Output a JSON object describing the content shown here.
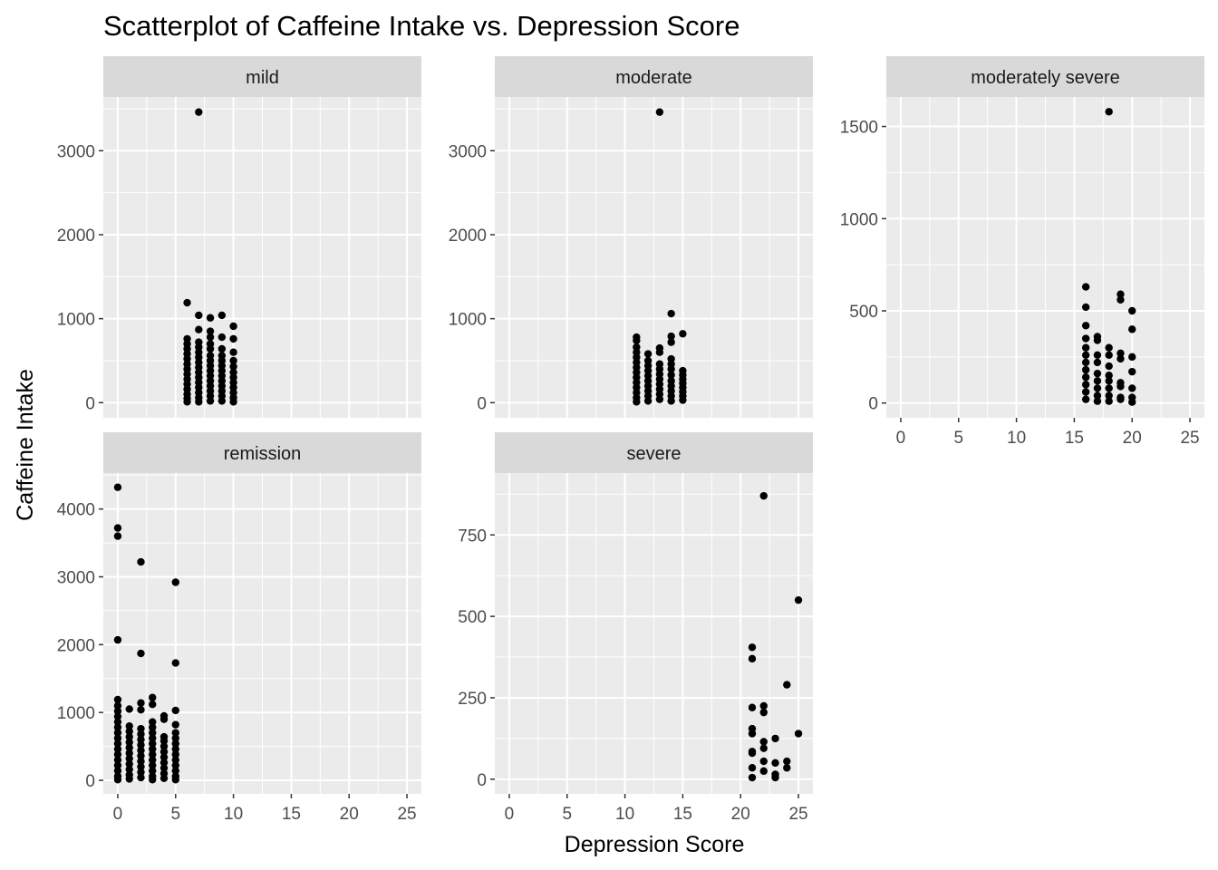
{
  "chart_data": {
    "type": "scatter",
    "title": "Scatterplot of Caffeine Intake vs. Depression Score",
    "xlabel": "Depression Score",
    "ylabel": "Caffeine Intake",
    "xlim": [
      -1.25,
      26.25
    ],
    "x_ticks": [
      0,
      5,
      10,
      15,
      20,
      25
    ],
    "point_color": "#000000",
    "panel_color": "#ebebeb",
    "strip_color": "#d9d9d9",
    "panels": [
      {
        "name": "mild",
        "ylim": [
          -180,
          3640
        ],
        "y_ticks": [
          0,
          1000,
          2000,
          3000
        ],
        "points": [
          [
            7,
            3460
          ],
          [
            6,
            1190
          ],
          [
            7,
            1040
          ],
          [
            8,
            1010
          ],
          [
            9,
            1040
          ],
          [
            10,
            910
          ],
          [
            7,
            870
          ],
          [
            9,
            780
          ],
          [
            8,
            850
          ],
          [
            6,
            760
          ],
          [
            6,
            700
          ],
          [
            6,
            640
          ],
          [
            6,
            580
          ],
          [
            6,
            520
          ],
          [
            6,
            460
          ],
          [
            6,
            400
          ],
          [
            6,
            340
          ],
          [
            6,
            280
          ],
          [
            6,
            220
          ],
          [
            6,
            160
          ],
          [
            6,
            100
          ],
          [
            6,
            50
          ],
          [
            6,
            10
          ],
          [
            7,
            720
          ],
          [
            7,
            660
          ],
          [
            7,
            600
          ],
          [
            7,
            540
          ],
          [
            7,
            480
          ],
          [
            7,
            420
          ],
          [
            7,
            360
          ],
          [
            7,
            300
          ],
          [
            7,
            240
          ],
          [
            7,
            180
          ],
          [
            7,
            120
          ],
          [
            7,
            60
          ],
          [
            7,
            10
          ],
          [
            8,
            780
          ],
          [
            8,
            700
          ],
          [
            8,
            640
          ],
          [
            8,
            560
          ],
          [
            8,
            500
          ],
          [
            8,
            440
          ],
          [
            8,
            380
          ],
          [
            8,
            320
          ],
          [
            8,
            260
          ],
          [
            8,
            200
          ],
          [
            8,
            140
          ],
          [
            8,
            80
          ],
          [
            8,
            20
          ],
          [
            9,
            640
          ],
          [
            9,
            560
          ],
          [
            9,
            500
          ],
          [
            9,
            440
          ],
          [
            9,
            380
          ],
          [
            9,
            320
          ],
          [
            9,
            260
          ],
          [
            9,
            200
          ],
          [
            9,
            140
          ],
          [
            9,
            80
          ],
          [
            9,
            20
          ],
          [
            10,
            760
          ],
          [
            10,
            600
          ],
          [
            10,
            500
          ],
          [
            10,
            430
          ],
          [
            10,
            360
          ],
          [
            10,
            300
          ],
          [
            10,
            240
          ],
          [
            10,
            180
          ],
          [
            10,
            120
          ],
          [
            10,
            60
          ],
          [
            10,
            10
          ]
        ]
      },
      {
        "name": "moderate",
        "ylim": [
          -180,
          3640
        ],
        "y_ticks": [
          0,
          1000,
          2000,
          3000
        ],
        "points": [
          [
            13,
            3460
          ],
          [
            14,
            1060
          ],
          [
            15,
            820
          ],
          [
            14,
            790
          ],
          [
            14,
            720
          ],
          [
            13,
            650
          ],
          [
            13,
            600
          ],
          [
            12,
            580
          ],
          [
            11,
            780
          ],
          [
            11,
            740
          ],
          [
            11,
            660
          ],
          [
            11,
            600
          ],
          [
            11,
            540
          ],
          [
            11,
            480
          ],
          [
            11,
            420
          ],
          [
            11,
            360
          ],
          [
            11,
            300
          ],
          [
            11,
            240
          ],
          [
            11,
            180
          ],
          [
            11,
            120
          ],
          [
            11,
            60
          ],
          [
            11,
            10
          ],
          [
            12,
            500
          ],
          [
            12,
            440
          ],
          [
            12,
            380
          ],
          [
            12,
            320
          ],
          [
            12,
            260
          ],
          [
            12,
            200
          ],
          [
            12,
            140
          ],
          [
            12,
            80
          ],
          [
            12,
            20
          ],
          [
            13,
            460
          ],
          [
            13,
            400
          ],
          [
            13,
            340
          ],
          [
            13,
            280
          ],
          [
            13,
            220
          ],
          [
            13,
            160
          ],
          [
            13,
            100
          ],
          [
            13,
            40
          ],
          [
            14,
            520
          ],
          [
            14,
            460
          ],
          [
            14,
            400
          ],
          [
            14,
            330
          ],
          [
            14,
            260
          ],
          [
            14,
            200
          ],
          [
            14,
            140
          ],
          [
            14,
            80
          ],
          [
            14,
            20
          ],
          [
            15,
            380
          ],
          [
            15,
            330
          ],
          [
            15,
            280
          ],
          [
            15,
            230
          ],
          [
            15,
            180
          ],
          [
            15,
            130
          ],
          [
            15,
            80
          ],
          [
            15,
            30
          ]
        ]
      },
      {
        "name": "moderately severe",
        "ylim": [
          -80,
          1660
        ],
        "y_ticks": [
          0,
          500,
          1000,
          1500
        ],
        "points": [
          [
            18,
            1580
          ],
          [
            16,
            630
          ],
          [
            16,
            520
          ],
          [
            16,
            420
          ],
          [
            16,
            350
          ],
          [
            16,
            300
          ],
          [
            16,
            260
          ],
          [
            16,
            220
          ],
          [
            16,
            180
          ],
          [
            16,
            140
          ],
          [
            16,
            100
          ],
          [
            16,
            60
          ],
          [
            16,
            20
          ],
          [
            17,
            360
          ],
          [
            17,
            340
          ],
          [
            17,
            260
          ],
          [
            17,
            220
          ],
          [
            17,
            160
          ],
          [
            17,
            120
          ],
          [
            17,
            80
          ],
          [
            17,
            40
          ],
          [
            17,
            10
          ],
          [
            18,
            300
          ],
          [
            18,
            260
          ],
          [
            18,
            200
          ],
          [
            18,
            150
          ],
          [
            18,
            120
          ],
          [
            18,
            80
          ],
          [
            18,
            40
          ],
          [
            18,
            10
          ],
          [
            19,
            590
          ],
          [
            19,
            560
          ],
          [
            19,
            270
          ],
          [
            19,
            240
          ],
          [
            19,
            110
          ],
          [
            19,
            90
          ],
          [
            19,
            30
          ],
          [
            19,
            20
          ],
          [
            20,
            500
          ],
          [
            20,
            400
          ],
          [
            20,
            250
          ],
          [
            20,
            170
          ],
          [
            20,
            80
          ],
          [
            20,
            30
          ],
          [
            20,
            5
          ]
        ]
      },
      {
        "name": "remission",
        "ylim": [
          -200,
          4530
        ],
        "y_ticks": [
          0,
          1000,
          2000,
          3000,
          4000
        ],
        "points": [
          [
            0,
            4320
          ],
          [
            0,
            3720
          ],
          [
            0,
            3600
          ],
          [
            0,
            2070
          ],
          [
            2,
            3220
          ],
          [
            2,
            1870
          ],
          [
            5,
            2920
          ],
          [
            5,
            1730
          ],
          [
            0,
            1190
          ],
          [
            0,
            1100
          ],
          [
            0,
            1020
          ],
          [
            0,
            940
          ],
          [
            0,
            860
          ],
          [
            0,
            780
          ],
          [
            0,
            700
          ],
          [
            0,
            620
          ],
          [
            0,
            540
          ],
          [
            0,
            460
          ],
          [
            0,
            380
          ],
          [
            0,
            300
          ],
          [
            0,
            220
          ],
          [
            0,
            140
          ],
          [
            0,
            60
          ],
          [
            0,
            10
          ],
          [
            1,
            1050
          ],
          [
            1,
            800
          ],
          [
            1,
            720
          ],
          [
            1,
            640
          ],
          [
            1,
            560
          ],
          [
            1,
            480
          ],
          [
            1,
            400
          ],
          [
            1,
            320
          ],
          [
            1,
            240
          ],
          [
            1,
            160
          ],
          [
            1,
            80
          ],
          [
            1,
            20
          ],
          [
            2,
            1140
          ],
          [
            2,
            1040
          ],
          [
            2,
            760
          ],
          [
            2,
            680
          ],
          [
            2,
            600
          ],
          [
            2,
            520
          ],
          [
            2,
            440
          ],
          [
            2,
            360
          ],
          [
            2,
            280
          ],
          [
            2,
            200
          ],
          [
            2,
            120
          ],
          [
            2,
            40
          ],
          [
            3,
            1220
          ],
          [
            3,
            1120
          ],
          [
            3,
            860
          ],
          [
            3,
            780
          ],
          [
            3,
            700
          ],
          [
            3,
            620
          ],
          [
            3,
            540
          ],
          [
            3,
            460
          ],
          [
            3,
            380
          ],
          [
            3,
            300
          ],
          [
            3,
            220
          ],
          [
            3,
            140
          ],
          [
            3,
            60
          ],
          [
            3,
            10
          ],
          [
            4,
            950
          ],
          [
            4,
            900
          ],
          [
            4,
            640
          ],
          [
            4,
            580
          ],
          [
            4,
            500
          ],
          [
            4,
            420
          ],
          [
            4,
            340
          ],
          [
            4,
            260
          ],
          [
            4,
            180
          ],
          [
            4,
            100
          ],
          [
            4,
            30
          ],
          [
            5,
            1030
          ],
          [
            5,
            820
          ],
          [
            5,
            700
          ],
          [
            5,
            620
          ],
          [
            5,
            540
          ],
          [
            5,
            460
          ],
          [
            5,
            380
          ],
          [
            5,
            300
          ],
          [
            5,
            220
          ],
          [
            5,
            140
          ],
          [
            5,
            60
          ],
          [
            5,
            10
          ]
        ]
      },
      {
        "name": "severe",
        "ylim": [
          -45,
          940
        ],
        "y_ticks": [
          0,
          250,
          500,
          750
        ],
        "points": [
          [
            22,
            870
          ],
          [
            25,
            550
          ],
          [
            21,
            405
          ],
          [
            21,
            370
          ],
          [
            24,
            290
          ],
          [
            21,
            220
          ],
          [
            22,
            225
          ],
          [
            22,
            205
          ],
          [
            21,
            155
          ],
          [
            21,
            140
          ],
          [
            25,
            140
          ],
          [
            23,
            125
          ],
          [
            22,
            115
          ],
          [
            22,
            95
          ],
          [
            21,
            85
          ],
          [
            21,
            80
          ],
          [
            22,
            55
          ],
          [
            23,
            50
          ],
          [
            24,
            55
          ],
          [
            24,
            35
          ],
          [
            21,
            35
          ],
          [
            22,
            25
          ],
          [
            23,
            15
          ],
          [
            23,
            5
          ],
          [
            21,
            5
          ]
        ]
      }
    ]
  }
}
